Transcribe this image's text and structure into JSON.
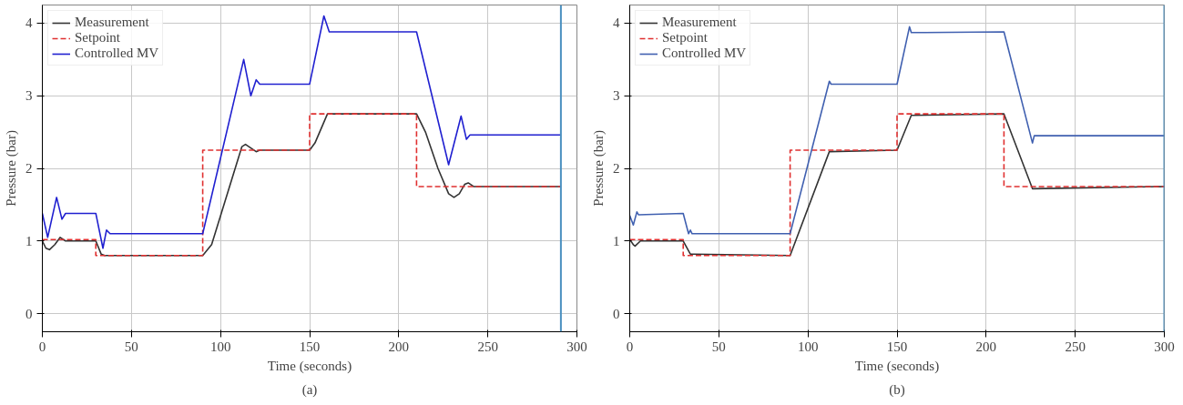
{
  "chart_data": [
    {
      "type": "line",
      "xlabel": "Time (seconds)",
      "ylabel": "Pressure (bar)",
      "annotations": [
        "(a)"
      ],
      "xlim": [
        0,
        300
      ],
      "ylim": [
        -0.25,
        4.25
      ],
      "xticks": [
        0,
        50,
        100,
        150,
        200,
        250,
        300
      ],
      "yticks": [
        0,
        1,
        2,
        3,
        4
      ],
      "grid": true,
      "legend": "top left",
      "series": [
        {
          "name": "Measurement",
          "color": "#333333",
          "line_style": "solid",
          "x": [
            0,
            2,
            4,
            7,
            10,
            13,
            30,
            33,
            35,
            90,
            95,
            112,
            114,
            117,
            120,
            122,
            150,
            153,
            160,
            210,
            215,
            222,
            228,
            231,
            234,
            237,
            239,
            242,
            291
          ],
          "values": [
            1.0,
            0.9,
            0.88,
            0.95,
            1.05,
            1.0,
            1.0,
            0.82,
            0.8,
            0.8,
            0.95,
            2.3,
            2.33,
            2.28,
            2.23,
            2.25,
            2.25,
            2.35,
            2.75,
            2.75,
            2.5,
            2.0,
            1.65,
            1.6,
            1.65,
            1.78,
            1.8,
            1.75,
            1.75
          ]
        },
        {
          "name": "Setpoint",
          "color": "#e03030",
          "line_style": "dashed",
          "x": [
            0,
            30,
            30,
            90,
            90,
            150,
            150,
            210,
            210,
            291
          ],
          "values": [
            1.02,
            1.02,
            0.8,
            0.8,
            2.25,
            2.25,
            2.75,
            2.75,
            1.75,
            1.75
          ]
        },
        {
          "name": "Controlled MV",
          "color": "#2020d0",
          "line_style": "solid",
          "x": [
            0,
            3,
            8,
            11,
            13,
            30,
            34,
            36,
            38,
            90,
            113,
            117,
            120,
            122,
            150,
            158,
            161,
            163,
            210,
            228,
            235,
            238,
            240,
            291
          ],
          "values": [
            1.38,
            1.05,
            1.6,
            1.3,
            1.38,
            1.38,
            0.9,
            1.15,
            1.1,
            1.1,
            3.5,
            3.0,
            3.22,
            3.16,
            3.16,
            4.1,
            3.88,
            3.88,
            3.88,
            2.05,
            2.72,
            2.4,
            2.46,
            2.46
          ]
        }
      ],
      "ref_lines": [
        {
          "axis": "x",
          "value": 291,
          "color": "#4a90c0"
        }
      ]
    },
    {
      "type": "line",
      "xlabel": "Time (seconds)",
      "ylabel": "Pressure (bar)",
      "annotations": [
        "(b)"
      ],
      "xlim": [
        0,
        300
      ],
      "ylim": [
        -0.25,
        4.25
      ],
      "xticks": [
        0,
        50,
        100,
        150,
        200,
        250,
        300
      ],
      "yticks": [
        0,
        1,
        2,
        3,
        4
      ],
      "grid": true,
      "legend": "top left",
      "series": [
        {
          "name": "Measurement",
          "color": "#333333",
          "line_style": "solid",
          "x": [
            0,
            2,
            3,
            6,
            30,
            34,
            90,
            112,
            150,
            158,
            210,
            226,
            300
          ],
          "values": [
            1.02,
            0.95,
            0.93,
            1.0,
            1.0,
            0.82,
            0.8,
            2.23,
            2.25,
            2.73,
            2.75,
            1.72,
            1.75
          ]
        },
        {
          "name": "Setpoint",
          "color": "#e03030",
          "line_style": "dashed",
          "x": [
            0,
            30,
            30,
            90,
            90,
            150,
            150,
            210,
            210,
            300
          ],
          "values": [
            1.02,
            1.02,
            0.8,
            0.8,
            2.25,
            2.25,
            2.75,
            2.75,
            1.75,
            1.75
          ]
        },
        {
          "name": "Controlled MV",
          "color": "#4060b0",
          "line_style": "solid",
          "x": [
            0,
            2,
            4,
            5,
            30,
            33,
            34,
            35,
            90,
            112,
            113,
            150,
            157,
            158,
            210,
            226,
            227,
            300
          ],
          "values": [
            1.35,
            1.22,
            1.4,
            1.36,
            1.38,
            1.1,
            1.15,
            1.1,
            1.1,
            3.2,
            3.16,
            3.16,
            3.95,
            3.87,
            3.88,
            2.35,
            2.45,
            2.45
          ]
        }
      ],
      "ref_lines": [
        {
          "axis": "x",
          "value": 300,
          "color": "#4a90c0"
        }
      ]
    }
  ]
}
